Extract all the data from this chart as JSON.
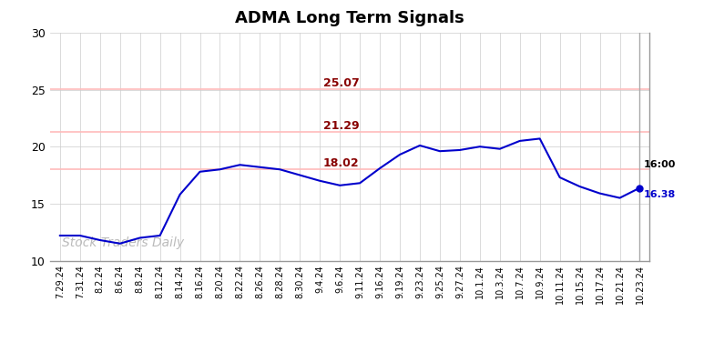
{
  "title": "ADMA Long Term Signals",
  "watermark": "Stock Traders Daily",
  "hlines": [
    {
      "y": 18.02,
      "label": "18.02",
      "color": "#ffbbbb"
    },
    {
      "y": 21.29,
      "label": "21.29",
      "color": "#ffbbbb"
    },
    {
      "y": 25.07,
      "label": "25.07",
      "color": "#ffbbbb"
    }
  ],
  "hline_label_color": "#880000",
  "ylim": [
    10,
    30
  ],
  "yticks": [
    10,
    15,
    20,
    25,
    30
  ],
  "end_label_time": "16:00",
  "end_label_price": "16.38",
  "line_color": "#0000cc",
  "background_color": "#ffffff",
  "grid_color": "#cccccc",
  "x_labels": [
    "7.29.24",
    "7.31.24",
    "8.2.24",
    "8.6.24",
    "8.8.24",
    "8.12.24",
    "8.14.24",
    "8.16.24",
    "8.20.24",
    "8.22.24",
    "8.26.24",
    "8.28.24",
    "8.30.24",
    "9.4.24",
    "9.6.24",
    "9.11.24",
    "9.16.24",
    "9.19.24",
    "9.23.24",
    "9.25.24",
    "9.27.24",
    "10.1.24",
    "10.3.24",
    "10.7.24",
    "10.9.24",
    "10.11.24",
    "10.15.24",
    "10.17.24",
    "10.21.24",
    "10.23.24"
  ],
  "y_values": [
    12.2,
    12.2,
    11.8,
    11.5,
    12.0,
    12.2,
    15.8,
    17.8,
    18.0,
    18.4,
    18.2,
    18.0,
    17.5,
    17.0,
    16.6,
    16.8,
    18.1,
    19.3,
    20.1,
    19.6,
    19.7,
    20.0,
    19.8,
    20.5,
    20.7,
    17.3,
    16.5,
    15.9,
    15.5,
    16.38
  ]
}
